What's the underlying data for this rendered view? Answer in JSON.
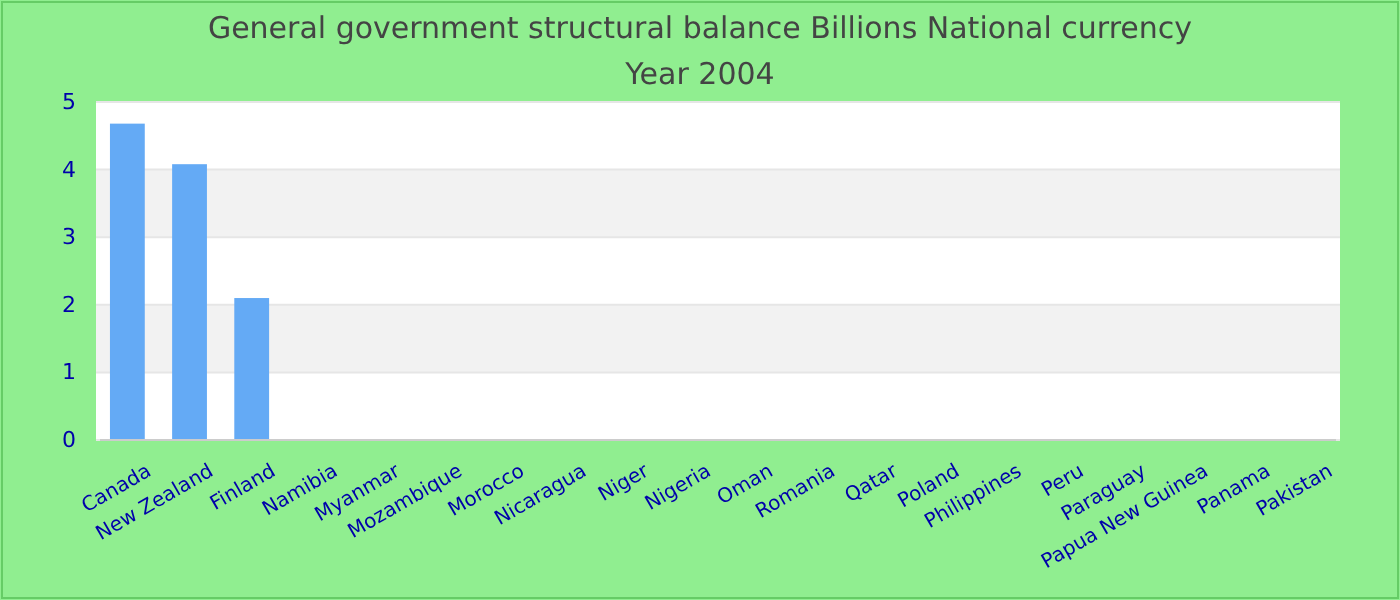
{
  "chart_data": {
    "type": "bar",
    "title": "General government structural balance Billions National currency",
    "subtitle": "Year 2004",
    "categories": [
      "Canada",
      "New Zealand",
      "Finland",
      "Namibia",
      "Myanmar",
      "Mozambique",
      "Morocco",
      "Nicaragua",
      "Niger",
      "Nigeria",
      "Oman",
      "Romania",
      "Qatar",
      "Poland",
      "Philippines",
      "Peru",
      "Paraguay",
      "Papua New Guinea",
      "Panama",
      "Pakistan"
    ],
    "values": [
      4.68,
      4.08,
      2.1,
      null,
      null,
      null,
      null,
      null,
      null,
      null,
      null,
      null,
      null,
      null,
      null,
      null,
      null,
      null,
      null,
      null
    ],
    "color": "#64aaf5",
    "ylim": [
      0,
      5
    ],
    "yticks": [
      0,
      1,
      2,
      3,
      4,
      5
    ],
    "grid": "y"
  }
}
